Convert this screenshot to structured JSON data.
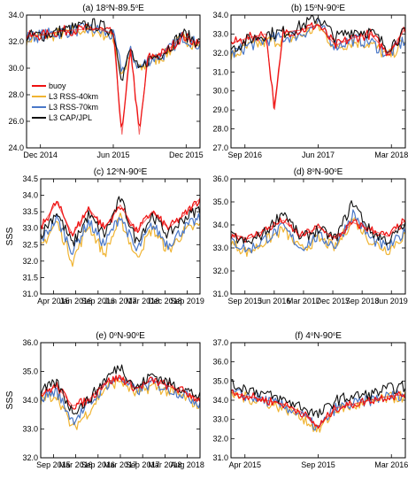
{
  "figure": {
    "ylabel": "SSS",
    "legend": [
      {
        "label": "buoy",
        "color": "#ee1111"
      },
      {
        "label": "L3 RSS-40km",
        "color": "#f0b432"
      },
      {
        "label": "L3 RSS-70km",
        "color": "#4a78c8"
      },
      {
        "label": "L3 CAP/JPL",
        "color": "#111111"
      }
    ]
  },
  "chart_data": [
    {
      "type": "line",
      "title": "(a) 18°N-89.5°E",
      "title_parts": [
        "(a) 18",
        "o",
        "N-89.5",
        "o",
        "E"
      ],
      "ylabel": "SSS",
      "ylim": [
        24,
        34
      ],
      "yticks": [
        "24.0",
        "26.0",
        "28.0",
        "30.0",
        "32.0",
        "34.0"
      ],
      "xticks": [
        "Dec 2014",
        "Jun 2015",
        "Dec 2015"
      ],
      "legend_position": "lower-left",
      "series": [
        {
          "name": "buoy",
          "x": [
            0,
            0.1,
            0.2,
            0.3,
            0.4,
            0.5,
            0.55,
            0.6,
            0.65,
            0.7,
            0.8,
            0.9,
            1.0
          ],
          "values": [
            32.4,
            32.5,
            32.8,
            32.9,
            33.0,
            32.6,
            25.0,
            31.5,
            25.0,
            30.8,
            31.2,
            32.4,
            31.8
          ]
        },
        {
          "name": "L3 RSS-40km",
          "x": [
            0,
            0.1,
            0.2,
            0.3,
            0.4,
            0.5,
            0.55,
            0.6,
            0.65,
            0.7,
            0.8,
            0.9,
            1.0
          ],
          "values": [
            32.2,
            32.4,
            32.6,
            32.9,
            32.8,
            32.3,
            29.5,
            31.0,
            29.8,
            30.4,
            31.0,
            32.3,
            31.6
          ]
        },
        {
          "name": "L3 RSS-70km",
          "x": [
            0,
            0.1,
            0.2,
            0.3,
            0.4,
            0.5,
            0.55,
            0.6,
            0.65,
            0.7,
            0.8,
            0.9,
            1.0
          ],
          "values": [
            32.3,
            32.5,
            32.7,
            32.9,
            32.9,
            32.4,
            29.8,
            31.2,
            30.0,
            30.6,
            31.1,
            32.4,
            31.7
          ]
        },
        {
          "name": "L3 CAP/JPL",
          "x": [
            0,
            0.1,
            0.2,
            0.3,
            0.4,
            0.5,
            0.55,
            0.6,
            0.65,
            0.7,
            0.8,
            0.9,
            1.0
          ],
          "values": [
            32.4,
            32.5,
            32.8,
            33.1,
            33.3,
            32.8,
            29.3,
            31.4,
            29.6,
            30.6,
            31.3,
            32.6,
            31.9
          ]
        }
      ]
    },
    {
      "type": "line",
      "title": "(b) 15°N-90°E",
      "title_parts": [
        "(b) 15",
        "o",
        "N-90",
        "o",
        "E"
      ],
      "ylim": [
        27,
        34
      ],
      "yticks": [
        "27.0",
        "28.0",
        "29.0",
        "30.0",
        "31.0",
        "32.0",
        "33.0",
        "34.0"
      ],
      "xticks": [
        "Sep 2016",
        "Jun 2017",
        "Mar 2018"
      ],
      "series": [
        {
          "name": "buoy",
          "x": [
            0,
            0.1,
            0.2,
            0.25,
            0.3,
            0.4,
            0.5,
            0.6,
            0.7,
            0.8,
            0.9,
            1.0
          ],
          "values": [
            32.5,
            32.8,
            33.0,
            29.0,
            33.1,
            33.2,
            33.5,
            32.4,
            32.8,
            33.0,
            32.0,
            33.3
          ]
        },
        {
          "name": "L3 RSS-40km",
          "x": [
            0,
            0.1,
            0.2,
            0.3,
            0.4,
            0.5,
            0.6,
            0.7,
            0.8,
            0.9,
            1.0
          ],
          "values": [
            31.8,
            32.3,
            32.6,
            32.7,
            32.9,
            33.4,
            32.3,
            32.6,
            32.5,
            31.8,
            32.6
          ]
        },
        {
          "name": "L3 RSS-70km",
          "x": [
            0,
            0.1,
            0.2,
            0.3,
            0.4,
            0.5,
            0.6,
            0.7,
            0.8,
            0.9,
            1.0
          ],
          "values": [
            31.9,
            32.4,
            32.7,
            32.8,
            33.0,
            33.5,
            32.4,
            32.7,
            32.6,
            31.9,
            32.7
          ]
        },
        {
          "name": "L3 CAP/JPL",
          "x": [
            0,
            0.1,
            0.2,
            0.3,
            0.4,
            0.5,
            0.6,
            0.7,
            0.8,
            0.9,
            1.0
          ],
          "values": [
            32.2,
            32.7,
            33.0,
            33.1,
            33.4,
            33.9,
            32.8,
            33.2,
            33.1,
            32.3,
            33.1
          ]
        }
      ]
    },
    {
      "type": "line",
      "title": "(c) 12°N-90°E",
      "title_parts": [
        "(c) 12",
        "o",
        "N-90",
        "o",
        "E"
      ],
      "ylabel": "SSS",
      "ylim": [
        31,
        34.5
      ],
      "yticks": [
        "31.0",
        "31.5",
        "32.0",
        "32.5",
        "33.0",
        "33.5",
        "34.0",
        "34.5"
      ],
      "xticks": [
        "Apr 2015",
        "Jan 2016",
        "Sep 2016",
        "Jun 2017",
        "Mar 2018",
        "Dec 2018",
        "Sep 2019"
      ],
      "series": [
        {
          "name": "buoy",
          "x": [
            0,
            0.1,
            0.2,
            0.3,
            0.4,
            0.5,
            0.6,
            0.7,
            0.8,
            0.9,
            1.0
          ],
          "values": [
            33.0,
            33.8,
            32.8,
            33.6,
            33.0,
            33.7,
            32.9,
            33.5,
            33.0,
            33.4,
            33.9
          ]
        },
        {
          "name": "L3 RSS-40km",
          "x": [
            0,
            0.1,
            0.2,
            0.3,
            0.4,
            0.5,
            0.6,
            0.7,
            0.8,
            0.9,
            1.0
          ],
          "values": [
            32.4,
            33.2,
            32.0,
            33.1,
            32.2,
            33.3,
            32.1,
            33.0,
            32.3,
            32.9,
            33.1
          ]
        },
        {
          "name": "L3 RSS-70km",
          "x": [
            0,
            0.1,
            0.2,
            0.3,
            0.4,
            0.5,
            0.6,
            0.7,
            0.8,
            0.9,
            1.0
          ],
          "values": [
            32.6,
            33.3,
            32.3,
            33.2,
            32.5,
            33.4,
            32.3,
            33.1,
            32.5,
            33.0,
            33.3
          ]
        },
        {
          "name": "L3 CAP/JPL",
          "x": [
            0,
            0.1,
            0.2,
            0.3,
            0.4,
            0.5,
            0.6,
            0.7,
            0.8,
            0.9,
            1.0
          ],
          "values": [
            32.8,
            33.5,
            32.5,
            33.4,
            32.8,
            33.9,
            32.6,
            33.4,
            32.8,
            33.3,
            33.6
          ]
        }
      ]
    },
    {
      "type": "line",
      "title": "(d) 8°N-90°E",
      "title_parts": [
        "(d) 8",
        "o",
        "N-90",
        "o",
        "E"
      ],
      "ylim": [
        31,
        36
      ],
      "yticks": [
        "31.0",
        "32.0",
        "33.0",
        "34.0",
        "35.0",
        "36.0"
      ],
      "xticks": [
        "Sep 2015",
        "Jun 2016",
        "Mar 2017",
        "Dec 2017",
        "Sep 2018",
        "Jun 2019"
      ],
      "series": [
        {
          "name": "buoy",
          "x": [
            0,
            0.1,
            0.2,
            0.3,
            0.4,
            0.5,
            0.6,
            0.7,
            0.8,
            0.9,
            1.0
          ],
          "values": [
            33.6,
            33.4,
            33.8,
            34.2,
            33.5,
            33.9,
            33.4,
            34.1,
            33.8,
            33.5,
            34.2
          ]
        },
        {
          "name": "L3 RSS-40km",
          "x": [
            0,
            0.1,
            0.2,
            0.3,
            0.4,
            0.5,
            0.6,
            0.7,
            0.8,
            0.9,
            1.0
          ],
          "values": [
            33.2,
            32.8,
            33.3,
            33.8,
            32.9,
            33.4,
            33.0,
            34.3,
            33.3,
            32.9,
            33.6
          ]
        },
        {
          "name": "L3 RSS-70km",
          "x": [
            0,
            0.1,
            0.2,
            0.3,
            0.4,
            0.5,
            0.6,
            0.7,
            0.8,
            0.9,
            1.0
          ],
          "values": [
            33.3,
            32.9,
            33.4,
            33.9,
            33.0,
            33.5,
            33.1,
            34.5,
            33.4,
            33.0,
            33.7
          ]
        },
        {
          "name": "L3 CAP/JPL",
          "x": [
            0,
            0.1,
            0.2,
            0.3,
            0.4,
            0.5,
            0.6,
            0.7,
            0.8,
            0.9,
            1.0
          ],
          "values": [
            33.5,
            33.2,
            33.7,
            34.6,
            33.4,
            33.8,
            33.4,
            35.0,
            33.7,
            33.3,
            34.0
          ]
        }
      ]
    },
    {
      "type": "line",
      "title": "(e) 0°N-90°E",
      "title_parts": [
        "(e) 0",
        "o",
        "N-90",
        "o",
        "E"
      ],
      "ylabel": "SSS",
      "ylim": [
        32,
        36
      ],
      "yticks": [
        "32.0",
        "33.0",
        "34.0",
        "35.0",
        "36.0"
      ],
      "xticks": [
        "Sep 2015",
        "Mar 2016",
        "Sep 2016",
        "Mar 2017",
        "Sep 2017",
        "Mar 2018",
        "Aug 2018"
      ],
      "series": [
        {
          "name": "buoy",
          "x": [
            0,
            0.1,
            0.2,
            0.3,
            0.4,
            0.5,
            0.6,
            0.7,
            0.8,
            0.9,
            1.0
          ],
          "values": [
            34.2,
            34.5,
            33.8,
            34.0,
            34.6,
            34.8,
            34.4,
            34.7,
            34.5,
            34.3,
            34.0
          ]
        },
        {
          "name": "L3 RSS-40km",
          "x": [
            0,
            0.1,
            0.2,
            0.3,
            0.4,
            0.5,
            0.6,
            0.7,
            0.8,
            0.9,
            1.0
          ],
          "values": [
            34.0,
            34.2,
            33.0,
            33.6,
            34.4,
            34.7,
            34.2,
            34.5,
            34.3,
            34.1,
            33.8
          ]
        },
        {
          "name": "L3 RSS-70km",
          "x": [
            0,
            0.1,
            0.2,
            0.3,
            0.4,
            0.5,
            0.6,
            0.7,
            0.8,
            0.9,
            1.0
          ],
          "values": [
            34.1,
            34.3,
            33.3,
            33.8,
            34.5,
            34.8,
            34.3,
            34.6,
            34.4,
            34.2,
            33.9
          ]
        },
        {
          "name": "L3 CAP/JPL",
          "x": [
            0,
            0.1,
            0.2,
            0.3,
            0.4,
            0.5,
            0.6,
            0.7,
            0.8,
            0.9,
            1.0
          ],
          "values": [
            34.3,
            34.6,
            33.6,
            34.0,
            34.7,
            35.2,
            34.4,
            34.9,
            34.6,
            34.4,
            34.1
          ]
        }
      ]
    },
    {
      "type": "line",
      "title": "(f) 4°N-90°E",
      "title_parts": [
        "(f) 4",
        "o",
        "N-90",
        "o",
        "E"
      ],
      "ylim": [
        31,
        37
      ],
      "yticks": [
        "31.0",
        "32.0",
        "33.0",
        "34.0",
        "35.0",
        "36.0",
        "37.0"
      ],
      "xticks": [
        "Apr 2015",
        "Sep 2015",
        "Mar 2016"
      ],
      "series": [
        {
          "name": "buoy",
          "x": [
            0,
            0.1,
            0.2,
            0.3,
            0.4,
            0.5,
            0.6,
            0.7,
            0.8,
            0.9,
            1.0
          ],
          "values": [
            34.4,
            34.2,
            34.0,
            33.8,
            33.4,
            32.6,
            33.6,
            33.8,
            34.0,
            34.2,
            34.3
          ]
        },
        {
          "name": "L3 RSS-40km",
          "x": [
            0,
            0.1,
            0.2,
            0.3,
            0.4,
            0.5,
            0.6,
            0.7,
            0.8,
            0.9,
            1.0
          ],
          "values": [
            34.3,
            34.1,
            33.9,
            33.6,
            33.2,
            32.4,
            33.5,
            33.7,
            33.9,
            34.1,
            34.2
          ]
        },
        {
          "name": "L3 RSS-70km",
          "x": [
            0,
            0.1,
            0.2,
            0.3,
            0.4,
            0.5,
            0.6,
            0.7,
            0.8,
            0.9,
            1.0
          ],
          "values": [
            34.4,
            34.2,
            34.0,
            33.7,
            33.3,
            32.5,
            33.6,
            33.8,
            34.0,
            34.2,
            34.3
          ]
        },
        {
          "name": "L3 CAP/JPL",
          "x": [
            0,
            0.1,
            0.2,
            0.3,
            0.4,
            0.5,
            0.6,
            0.7,
            0.8,
            0.9,
            1.0
          ],
          "values": [
            34.8,
            34.6,
            34.3,
            34.0,
            33.7,
            33.2,
            34.0,
            34.2,
            34.3,
            34.6,
            34.7
          ]
        }
      ]
    }
  ]
}
